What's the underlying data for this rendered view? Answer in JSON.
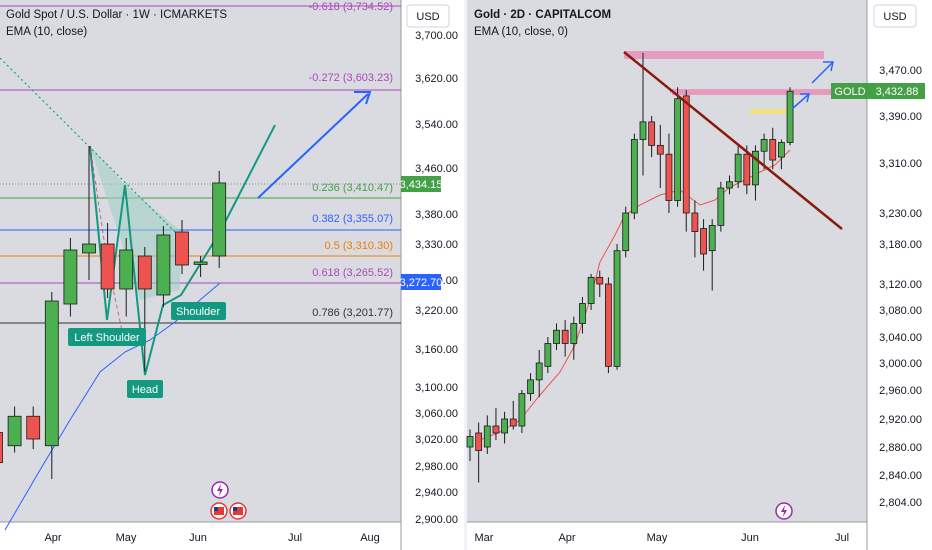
{
  "chart_data": [
    {
      "type": "candlestick",
      "title": "Gold Spot / U.S. Dollar · 1W · ICMARKETS",
      "indicator": "EMA (10, close)",
      "currency": "USD",
      "ylim": [
        2900,
        3760
      ],
      "price_ticks": [
        "3,700.00",
        "3,620.00",
        "3,540.00",
        "3,460.00",
        "3,380.00",
        "3,330.00",
        "3,270.00",
        "3,220.00",
        "3,160.00",
        "3,100.00",
        "3,060.00",
        "3,020.00",
        "2,980.00",
        "2,940.00",
        "2,900.00"
      ],
      "time_labels": [
        "Apr",
        "May",
        "Jun",
        "Jul",
        "Aug"
      ],
      "last_price_label": "3,434.15",
      "secondary_price_label": "3,272.70",
      "candles": [
        {
          "o": 3030,
          "h": 3060,
          "l": 2930,
          "c": 2985
        },
        {
          "o": 3010,
          "h": 3070,
          "l": 3000,
          "c": 3055
        },
        {
          "o": 3055,
          "h": 3070,
          "l": 3005,
          "c": 3020
        },
        {
          "o": 3010,
          "h": 3250,
          "l": 2960,
          "c": 3235
        },
        {
          "o": 3230,
          "h": 3340,
          "l": 3210,
          "c": 3320
        },
        {
          "o": 3315,
          "h": 3500,
          "l": 3270,
          "c": 3330
        },
        {
          "o": 3330,
          "h": 3365,
          "l": 3240,
          "c": 3255
        },
        {
          "o": 3255,
          "h": 3340,
          "l": 3210,
          "c": 3320
        },
        {
          "o": 3310,
          "h": 3325,
          "l": 3125,
          "c": 3255
        },
        {
          "o": 3245,
          "h": 3360,
          "l": 3225,
          "c": 3345
        },
        {
          "o": 3350,
          "h": 3370,
          "l": 3280,
          "c": 3295
        },
        {
          "o": 3296,
          "h": 3310,
          "l": 3275,
          "c": 3300
        },
        {
          "o": 3310,
          "h": 3455,
          "l": 3290,
          "c": 3434
        }
      ],
      "fibonacci": [
        {
          "label": "-0.618 (3,734.52)",
          "value": 3734.52,
          "color": "#ab47bc"
        },
        {
          "label": "-0.272 (3,603.23)",
          "value": 3603.23,
          "color": "#ab47bc"
        },
        {
          "label": "0.236 (3,410.47)",
          "value": 3410.47,
          "color": "#43a047"
        },
        {
          "label": "0.382 (3,355.07)",
          "value": 3355.07,
          "color": "#2962ff"
        },
        {
          "label": "0.5 (3,310.30)",
          "value": 3310.3,
          "color": "#f57c00"
        },
        {
          "label": "0.618 (3,265.52)",
          "value": 3265.52,
          "color": "#ab47bc"
        },
        {
          "label": "0.786 (3,201.77)",
          "value": 3201.77,
          "color": "#555555"
        }
      ],
      "annotations": [
        "Left Shoulder",
        "Head",
        "Shoulder"
      ]
    },
    {
      "type": "candlestick",
      "title": "Gold · 2D · CAPITALCOM",
      "indicator": "EMA (10, close, 0)",
      "currency": "USD",
      "ylim": [
        2775,
        3530
      ],
      "price_ticks": [
        "3,470.00",
        "3,390.00",
        "3,310.00",
        "3,230.00",
        "3,180.00",
        "3,120.00",
        "3,080.00",
        "3,040.00",
        "3,000.00",
        "2,960.00",
        "2,920.00",
        "2,880.00",
        "2,840.00",
        "2,804.00"
      ],
      "time_labels": [
        "Mar",
        "Apr",
        "May",
        "Jun",
        "Jul"
      ],
      "symbol_label": "GOLD",
      "last_price_label": "3,432.88",
      "candles": [
        {
          "o": 2880,
          "h": 2905,
          "l": 2860,
          "c": 2895
        },
        {
          "o": 2900,
          "h": 2915,
          "l": 2830,
          "c": 2875
        },
        {
          "o": 2880,
          "h": 2925,
          "l": 2870,
          "c": 2910
        },
        {
          "o": 2910,
          "h": 2935,
          "l": 2890,
          "c": 2900
        },
        {
          "o": 2900,
          "h": 2930,
          "l": 2885,
          "c": 2920
        },
        {
          "o": 2920,
          "h": 2945,
          "l": 2905,
          "c": 2910
        },
        {
          "o": 2910,
          "h": 2960,
          "l": 2900,
          "c": 2955
        },
        {
          "o": 2955,
          "h": 2985,
          "l": 2945,
          "c": 2975
        },
        {
          "o": 2975,
          "h": 3020,
          "l": 2950,
          "c": 3000
        },
        {
          "o": 2995,
          "h": 3040,
          "l": 2985,
          "c": 3030
        },
        {
          "o": 3030,
          "h": 3060,
          "l": 3020,
          "c": 3050
        },
        {
          "o": 3050,
          "h": 3065,
          "l": 3010,
          "c": 3030
        },
        {
          "o": 3030,
          "h": 3070,
          "l": 3005,
          "c": 3060
        },
        {
          "o": 3060,
          "h": 3100,
          "l": 3045,
          "c": 3090
        },
        {
          "o": 3090,
          "h": 3135,
          "l": 3080,
          "c": 3130
        },
        {
          "o": 3130,
          "h": 3140,
          "l": 3100,
          "c": 3120
        },
        {
          "o": 3120,
          "h": 3130,
          "l": 2985,
          "c": 2995
        },
        {
          "o": 2995,
          "h": 3180,
          "l": 2990,
          "c": 3170
        },
        {
          "o": 3170,
          "h": 3240,
          "l": 3160,
          "c": 3230
        },
        {
          "o": 3230,
          "h": 3360,
          "l": 3220,
          "c": 3350
        },
        {
          "o": 3350,
          "h": 3500,
          "l": 3290,
          "c": 3380
        },
        {
          "o": 3380,
          "h": 3390,
          "l": 3320,
          "c": 3340
        },
        {
          "o": 3340,
          "h": 3375,
          "l": 3270,
          "c": 3325
        },
        {
          "o": 3325,
          "h": 3360,
          "l": 3230,
          "c": 3250
        },
        {
          "o": 3250,
          "h": 3440,
          "l": 3240,
          "c": 3420
        },
        {
          "o": 3425,
          "h": 3435,
          "l": 3200,
          "c": 3230
        },
        {
          "o": 3230,
          "h": 3250,
          "l": 3160,
          "c": 3200
        },
        {
          "o": 3205,
          "h": 3220,
          "l": 3140,
          "c": 3165
        },
        {
          "o": 3170,
          "h": 3220,
          "l": 3110,
          "c": 3210
        },
        {
          "o": 3210,
          "h": 3280,
          "l": 3200,
          "c": 3270
        },
        {
          "o": 3270,
          "h": 3290,
          "l": 3260,
          "c": 3280
        },
        {
          "o": 3280,
          "h": 3340,
          "l": 3270,
          "c": 3325
        },
        {
          "o": 3325,
          "h": 3340,
          "l": 3260,
          "c": 3275
        },
        {
          "o": 3275,
          "h": 3340,
          "l": 3250,
          "c": 3330
        },
        {
          "o": 3330,
          "h": 3360,
          "l": 3300,
          "c": 3350
        },
        {
          "o": 3350,
          "h": 3370,
          "l": 3300,
          "c": 3315
        },
        {
          "o": 3320,
          "h": 3350,
          "l": 3300,
          "c": 3345
        },
        {
          "o": 3345,
          "h": 3440,
          "l": 3340,
          "c": 3433
        }
      ]
    }
  ]
}
